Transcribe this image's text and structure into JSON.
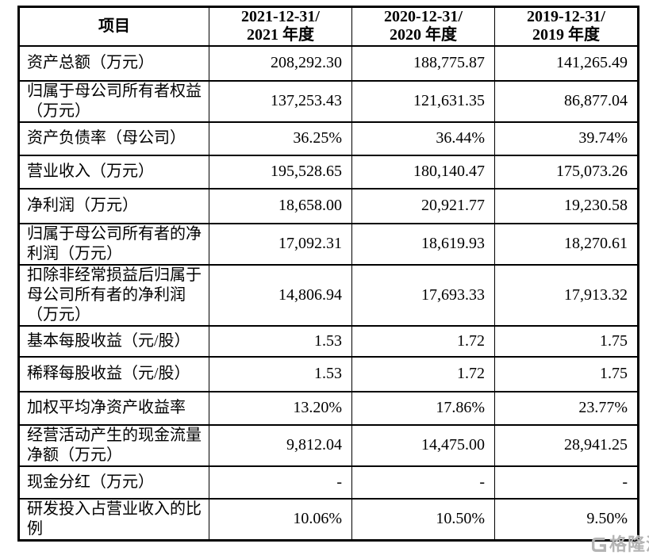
{
  "table": {
    "header": {
      "item_label": "项目",
      "period_columns": [
        "2021-12-31/\n2021 年度",
        "2020-12-31/\n2020 年度",
        "2019-12-31/\n2019 年度"
      ]
    },
    "rows": [
      {
        "label": "资产总额（万元）",
        "values": [
          "208,292.30",
          "188,775.87",
          "141,265.49"
        ]
      },
      {
        "label": "归属于母公司所有者权益\n（万元）",
        "values": [
          "137,253.43",
          "121,631.35",
          "86,877.04"
        ]
      },
      {
        "label": "资产负债率（母公司）",
        "values": [
          "36.25%",
          "36.44%",
          "39.74%"
        ]
      },
      {
        "label": "营业收入（万元）",
        "values": [
          "195,528.65",
          "180,140.47",
          "175,073.26"
        ]
      },
      {
        "label": "净利润（万元）",
        "values": [
          "18,658.00",
          "20,921.77",
          "19,230.58"
        ]
      },
      {
        "label": "归属于母公司所有者的净\n利润（万元）",
        "values": [
          "17,092.31",
          "18,619.93",
          "18,270.61"
        ]
      },
      {
        "label": "扣除非经常损益后归属于\n母公司所有者的净利润\n（万元）",
        "values": [
          "14,806.94",
          "17,693.33",
          "17,913.32"
        ]
      },
      {
        "label": "基本每股收益（元/股）",
        "values": [
          "1.53",
          "1.72",
          "1.75"
        ]
      },
      {
        "label": "稀释每股收益（元/股）",
        "values": [
          "1.53",
          "1.72",
          "1.75"
        ]
      },
      {
        "label": "加权平均净资产收益率",
        "values": [
          "13.20%",
          "17.86%",
          "23.77%"
        ]
      },
      {
        "label": "经营活动产生的现金流量\n净额（万元）",
        "values": [
          "9,812.04",
          "14,475.00",
          "28,941.25"
        ]
      },
      {
        "label": "现金分红（万元）",
        "values": [
          "-",
          "-",
          "-"
        ]
      },
      {
        "label": "研发投入占营业收入的比\n例",
        "values": [
          "10.06%",
          "10.50%",
          "9.50%"
        ]
      }
    ]
  },
  "watermark": {
    "brand_text": "格隆汇",
    "logo_icon": "gelonghui-g-icon",
    "color": "#b4b4b4"
  },
  "colors": {
    "background": "#ffffff",
    "border": "#000000",
    "text": "#000000"
  }
}
